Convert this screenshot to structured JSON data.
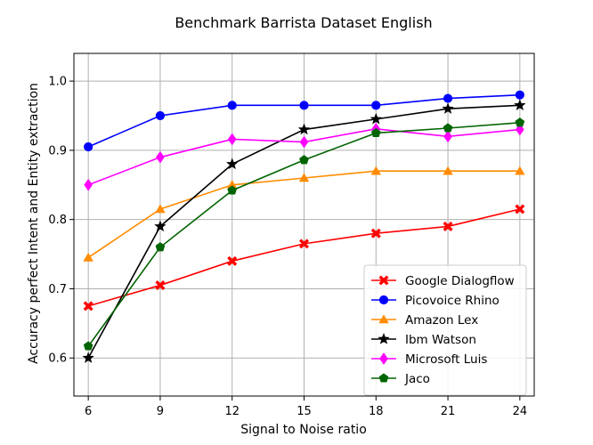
{
  "chart_data": {
    "type": "line",
    "title": "Benchmark Barrista Dataset English",
    "xlabel": "Signal to Noise ratio",
    "ylabel": "Accuracy perfect Intent and Entity extraction",
    "x": [
      6,
      9,
      12,
      15,
      18,
      21,
      24
    ],
    "x_ticks": [
      "6",
      "9",
      "12",
      "15",
      "18",
      "21",
      "24"
    ],
    "y_ticks": [
      "0.6",
      "0.7",
      "0.8",
      "0.9",
      "1.0"
    ],
    "y_tick_values": [
      0.6,
      0.7,
      0.8,
      0.9,
      1.0
    ],
    "xlim": [
      5.4,
      24.6
    ],
    "ylim": [
      0.545,
      1.04
    ],
    "grid": true,
    "legend_position": "lower-right",
    "series": [
      {
        "name": "Google Dialogflow",
        "color": "#ff0000",
        "marker": "X",
        "values": [
          0.675,
          0.705,
          0.74,
          0.765,
          0.78,
          0.79,
          0.815
        ]
      },
      {
        "name": "Picovoice Rhino",
        "color": "#0000ff",
        "marker": "circle",
        "values": [
          0.905,
          0.95,
          0.965,
          0.965,
          0.965,
          0.975,
          0.98
        ]
      },
      {
        "name": "Amazon Lex",
        "color": "#ff8c00",
        "marker": "triangle",
        "values": [
          0.745,
          0.815,
          0.85,
          0.86,
          0.87,
          0.87,
          0.87
        ]
      },
      {
        "name": "Ibm Watson",
        "color": "#000000",
        "marker": "star",
        "values": [
          0.6,
          0.79,
          0.88,
          0.93,
          0.945,
          0.96,
          0.965
        ]
      },
      {
        "name": "Microsoft Luis",
        "color": "#ff00ff",
        "marker": "diamond",
        "values": [
          0.85,
          0.89,
          0.916,
          0.912,
          0.931,
          0.92,
          0.93
        ]
      },
      {
        "name": "Jaco",
        "color": "#006400",
        "marker": "pentagon",
        "values": [
          0.617,
          0.76,
          0.842,
          0.886,
          0.925,
          0.932,
          0.94
        ]
      }
    ]
  }
}
